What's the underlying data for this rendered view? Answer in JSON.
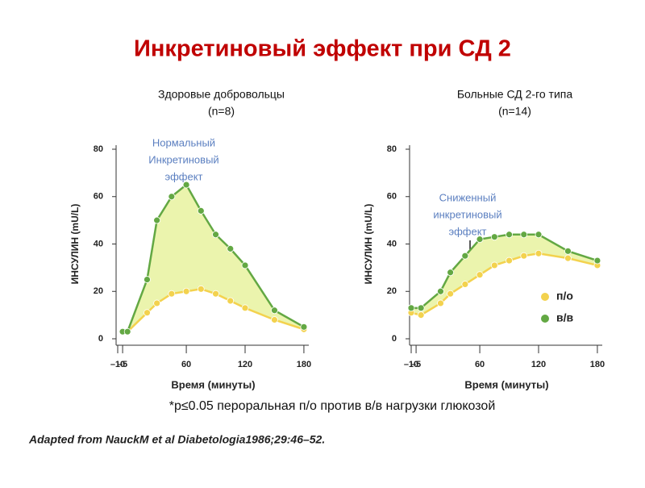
{
  "title": "Инкретиновый эффект при СД 2",
  "footnote": "*p≤0.05 пероральная п/о против в/в нагрузки глюкозой",
  "source": "Adapted from NauckM et al Diabetologia1986;29:46–52.",
  "chart_data": [
    {
      "type": "line",
      "title": "Здоровые добровольцы",
      "subtitle": "(n=8)",
      "annotation": [
        "Нормальный",
        "Инкретиновый",
        "эффект"
      ],
      "x_label": "Время (минуты)",
      "y_label": "ИНСУЛИН (mU/L)",
      "xlim": [
        -10,
        185
      ],
      "ylim": [
        0,
        80
      ],
      "xticks": [
        {
          "value": -10,
          "label": "–10"
        },
        {
          "value": -5,
          "label": "–5"
        },
        60,
        120,
        180
      ],
      "yticks": [
        0,
        20,
        40,
        60,
        80
      ],
      "legend": false,
      "series": [
        {
          "name": "п/о",
          "color": "#f3d24e",
          "x": [
            -5,
            0,
            20,
            30,
            45,
            60,
            75,
            90,
            105,
            120,
            150,
            180
          ],
          "values": [
            3,
            3,
            11,
            15,
            19,
            20,
            21,
            19,
            16,
            13,
            8,
            4
          ]
        },
        {
          "name": "в/в",
          "color": "#63a843",
          "x": [
            -5,
            0,
            20,
            30,
            45,
            60,
            75,
            90,
            105,
            120,
            150,
            180
          ],
          "values": [
            3,
            3,
            25,
            50,
            60,
            65,
            54,
            44,
            38,
            31,
            12,
            5
          ]
        }
      ]
    },
    {
      "type": "line",
      "title": "Больные СД 2-го типа",
      "subtitle": "(n=14)",
      "annotation": [
        "Сниженный",
        "инкретиновый",
        "эффект"
      ],
      "x_label": "Время (минуты)",
      "y_label": "ИНСУЛИН (mU/L)",
      "xlim": [
        -10,
        185
      ],
      "ylim": [
        0,
        80
      ],
      "xticks": [
        {
          "value": -10,
          "label": "–10"
        },
        {
          "value": -5,
          "label": "–5"
        },
        60,
        120,
        180
      ],
      "yticks": [
        0,
        20,
        40,
        60,
        80
      ],
      "legend": true,
      "series": [
        {
          "name": "п/о",
          "color": "#f3d24e",
          "x": [
            -10,
            0,
            20,
            30,
            45,
            60,
            75,
            90,
            105,
            120,
            150,
            180
          ],
          "values": [
            11,
            10,
            15,
            19,
            23,
            27,
            31,
            33,
            35,
            36,
            34,
            31
          ]
        },
        {
          "name": "в/в",
          "color": "#63a843",
          "x": [
            -10,
            0,
            20,
            30,
            45,
            60,
            75,
            90,
            105,
            120,
            150,
            180
          ],
          "values": [
            13,
            13,
            20,
            28,
            35,
            42,
            43,
            44,
            44,
            44,
            37,
            33
          ]
        }
      ]
    }
  ]
}
